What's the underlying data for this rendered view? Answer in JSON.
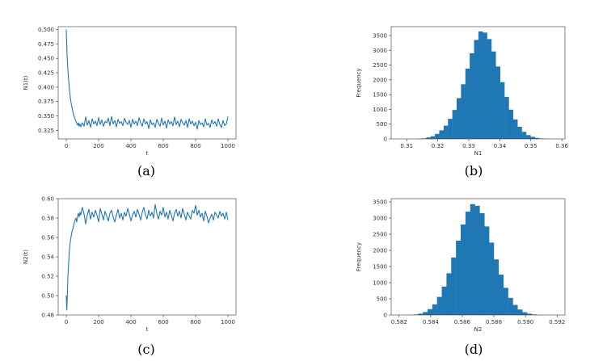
{
  "panel_labels": [
    "(a)",
    "(b)",
    "(c)",
    "(d)"
  ],
  "chart_data": [
    {
      "id": "a",
      "type": "line",
      "xlabel": "t",
      "ylabel": "N1(t)",
      "xlim": [
        -50,
        1050
      ],
      "ylim": [
        0.31,
        0.505
      ],
      "xticks": [
        0,
        200,
        400,
        600,
        800,
        1000
      ],
      "xtick_labels": [
        "0",
        "200",
        "400",
        "600",
        "800",
        "1000"
      ],
      "yticks": [
        0.325,
        0.35,
        0.375,
        0.4,
        0.425,
        0.45,
        0.475,
        0.5
      ],
      "ytick_labels": [
        "0.325",
        "0.350",
        "0.375",
        "0.400",
        "0.425",
        "0.450",
        "0.475",
        "0.500"
      ],
      "grid": false,
      "color": "#1f77b4",
      "series": [
        {
          "x": [
            0,
            5,
            10,
            15,
            20,
            25,
            30,
            35,
            40,
            45,
            50,
            55,
            60,
            65,
            70,
            75,
            80,
            85,
            90,
            95,
            100,
            110,
            120,
            130,
            140,
            150,
            160,
            170,
            180,
            190,
            200,
            210,
            220,
            230,
            240,
            250,
            260,
            270,
            280,
            290,
            300,
            310,
            320,
            330,
            340,
            350,
            360,
            370,
            380,
            390,
            400,
            410,
            420,
            430,
            440,
            450,
            460,
            470,
            480,
            490,
            500,
            510,
            520,
            530,
            540,
            550,
            560,
            570,
            580,
            590,
            600,
            610,
            620,
            630,
            640,
            650,
            660,
            670,
            680,
            690,
            700,
            710,
            720,
            730,
            740,
            750,
            760,
            770,
            780,
            790,
            800,
            810,
            820,
            830,
            840,
            850,
            860,
            870,
            880,
            890,
            900,
            910,
            920,
            930,
            940,
            950,
            960,
            970,
            980,
            990,
            1000
          ],
          "y": [
            0.5,
            0.455,
            0.43,
            0.41,
            0.395,
            0.382,
            0.372,
            0.365,
            0.358,
            0.352,
            0.348,
            0.344,
            0.34,
            0.337,
            0.334,
            0.338,
            0.332,
            0.336,
            0.331,
            0.335,
            0.338,
            0.332,
            0.348,
            0.334,
            0.342,
            0.33,
            0.345,
            0.336,
            0.341,
            0.333,
            0.347,
            0.335,
            0.343,
            0.332,
            0.34,
            0.338,
            0.346,
            0.333,
            0.349,
            0.336,
            0.342,
            0.331,
            0.344,
            0.337,
            0.34,
            0.333,
            0.346,
            0.339,
            0.335,
            0.342,
            0.33,
            0.344,
            0.336,
            0.341,
            0.333,
            0.347,
            0.338,
            0.332,
            0.345,
            0.336,
            0.34,
            0.328,
            0.343,
            0.335,
            0.338,
            0.33,
            0.344,
            0.337,
            0.332,
            0.346,
            0.334,
            0.341,
            0.329,
            0.343,
            0.336,
            0.34,
            0.333,
            0.348,
            0.335,
            0.341,
            0.331,
            0.344,
            0.338,
            0.334,
            0.342,
            0.33,
            0.345,
            0.336,
            0.341,
            0.333,
            0.339,
            0.327,
            0.342,
            0.335,
            0.338,
            0.331,
            0.345,
            0.334,
            0.337,
            0.33,
            0.343,
            0.336,
            0.34,
            0.332,
            0.345,
            0.335,
            0.33,
            0.342,
            0.333,
            0.336,
            0.349
          ]
        }
      ]
    },
    {
      "id": "b",
      "type": "bar",
      "xlabel": "N1",
      "ylabel": "Frequency",
      "xlim": [
        0.305,
        0.361
      ],
      "ylim": [
        0,
        3800
      ],
      "xticks": [
        0.31,
        0.32,
        0.33,
        0.34,
        0.35,
        0.36
      ],
      "xtick_labels": [
        "0.31",
        "0.32",
        "0.33",
        "0.34",
        "0.35",
        "0.36"
      ],
      "yticks": [
        0,
        500,
        1000,
        1500,
        2000,
        2500,
        3000,
        3500
      ],
      "ytick_labels": [
        "0",
        "500",
        "1000",
        "1500",
        "2000",
        "2500",
        "3000",
        "3500"
      ],
      "grid": false,
      "color": "#1f77b4",
      "bin_edges": [
        0.3135,
        0.3149,
        0.3163,
        0.3177,
        0.3191,
        0.3205,
        0.3219,
        0.3233,
        0.3247,
        0.3261,
        0.3275,
        0.3289,
        0.3303,
        0.3317,
        0.3331,
        0.3345,
        0.3359,
        0.3373,
        0.3387,
        0.3401,
        0.3415,
        0.3429,
        0.3443,
        0.3457,
        0.3471,
        0.3485,
        0.3499,
        0.3513,
        0.3527,
        0.3541,
        0.3555
      ],
      "values": [
        10,
        20,
        50,
        90,
        170,
        290,
        450,
        680,
        980,
        1380,
        1850,
        2380,
        2900,
        3350,
        3640,
        3600,
        3380,
        2960,
        2450,
        1920,
        1420,
        990,
        660,
        410,
        240,
        130,
        70,
        35,
        15,
        5
      ]
    },
    {
      "id": "c",
      "type": "line",
      "xlabel": "t",
      "ylabel": "N2(t)",
      "xlim": [
        -50,
        1050
      ],
      "ylim": [
        0.48,
        0.6
      ],
      "xticks": [
        0,
        200,
        400,
        600,
        800,
        1000
      ],
      "xtick_labels": [
        "0",
        "200",
        "400",
        "600",
        "800",
        "1000"
      ],
      "yticks": [
        0.48,
        0.5,
        0.52,
        0.54,
        0.56,
        0.58,
        0.6
      ],
      "ytick_labels": [
        "0.48",
        "0.50",
        "0.52",
        "0.54",
        "0.56",
        "0.58",
        "0.60"
      ],
      "grid": false,
      "color": "#1f77b4",
      "series": [
        {
          "x": [
            0,
            3,
            6,
            10,
            15,
            20,
            25,
            30,
            35,
            40,
            45,
            50,
            55,
            60,
            65,
            70,
            75,
            80,
            85,
            90,
            95,
            100,
            110,
            120,
            130,
            140,
            150,
            160,
            170,
            180,
            190,
            200,
            210,
            220,
            230,
            240,
            250,
            260,
            270,
            280,
            290,
            300,
            310,
            320,
            330,
            340,
            350,
            360,
            370,
            380,
            390,
            400,
            410,
            420,
            430,
            440,
            450,
            460,
            470,
            480,
            490,
            500,
            510,
            520,
            530,
            540,
            550,
            560,
            570,
            580,
            590,
            600,
            610,
            620,
            630,
            640,
            650,
            660,
            670,
            680,
            690,
            700,
            710,
            720,
            730,
            740,
            750,
            760,
            770,
            780,
            790,
            800,
            810,
            820,
            830,
            840,
            850,
            860,
            870,
            880,
            890,
            900,
            910,
            920,
            930,
            940,
            950,
            960,
            970,
            980,
            990,
            1000
          ],
          "y": [
            0.5,
            0.485,
            0.497,
            0.52,
            0.535,
            0.548,
            0.556,
            0.561,
            0.566,
            0.568,
            0.572,
            0.575,
            0.578,
            0.58,
            0.576,
            0.582,
            0.585,
            0.581,
            0.586,
            0.583,
            0.588,
            0.591,
            0.584,
            0.574,
            0.583,
            0.589,
            0.579,
            0.586,
            0.581,
            0.588,
            0.583,
            0.576,
            0.59,
            0.584,
            0.578,
            0.587,
            0.582,
            0.577,
            0.585,
            0.588,
            0.581,
            0.576,
            0.583,
            0.589,
            0.58,
            0.585,
            0.578,
            0.586,
            0.582,
            0.59,
            0.584,
            0.577,
            0.583,
            0.587,
            0.581,
            0.589,
            0.584,
            0.578,
            0.586,
            0.591,
            0.583,
            0.579,
            0.588,
            0.582,
            0.586,
            0.58,
            0.594,
            0.585,
            0.579,
            0.587,
            0.583,
            0.591,
            0.581,
            0.586,
            0.579,
            0.588,
            0.583,
            0.577,
            0.585,
            0.589,
            0.582,
            0.587,
            0.58,
            0.59,
            0.584,
            0.578,
            0.586,
            0.582,
            0.579,
            0.588,
            0.585,
            0.593,
            0.583,
            0.588,
            0.581,
            0.585,
            0.577,
            0.587,
            0.582,
            0.575,
            0.58,
            0.584,
            0.578,
            0.586,
            0.583,
            0.58,
            0.587,
            0.582,
            0.585,
            0.579,
            0.586,
            0.578
          ]
        }
      ]
    },
    {
      "id": "d",
      "type": "bar",
      "xlabel": "N2",
      "ylabel": "Frequency",
      "xlim": [
        0.5815,
        0.5925
      ],
      "ylim": [
        0,
        3600
      ],
      "xticks": [
        0.582,
        0.584,
        0.586,
        0.588,
        0.59,
        0.592
      ],
      "xtick_labels": [
        "0.582",
        "0.584",
        "0.586",
        "0.588",
        "0.590",
        "0.592"
      ],
      "yticks": [
        0,
        500,
        1000,
        1500,
        2000,
        2500,
        3000,
        3500
      ],
      "ytick_labels": [
        "0",
        "500",
        "1000",
        "1500",
        "2000",
        "2500",
        "3000",
        "3500"
      ],
      "grid": false,
      "color": "#1f77b4",
      "bin_edges": [
        0.5829,
        0.5832,
        0.5835,
        0.5838,
        0.5841,
        0.5844,
        0.5847,
        0.585,
        0.5853,
        0.5856,
        0.5859,
        0.5862,
        0.5865,
        0.5868,
        0.5871,
        0.5874,
        0.5877,
        0.588,
        0.5883,
        0.5886,
        0.5889,
        0.5892,
        0.5895,
        0.5898,
        0.5901,
        0.5904,
        0.5907,
        0.591
      ],
      "values": [
        15,
        40,
        90,
        180,
        330,
        560,
        880,
        1290,
        1780,
        2300,
        2800,
        3200,
        3430,
        3380,
        3150,
        2740,
        2240,
        1720,
        1250,
        840,
        530,
        310,
        170,
        85,
        40,
        18,
        6
      ]
    }
  ]
}
